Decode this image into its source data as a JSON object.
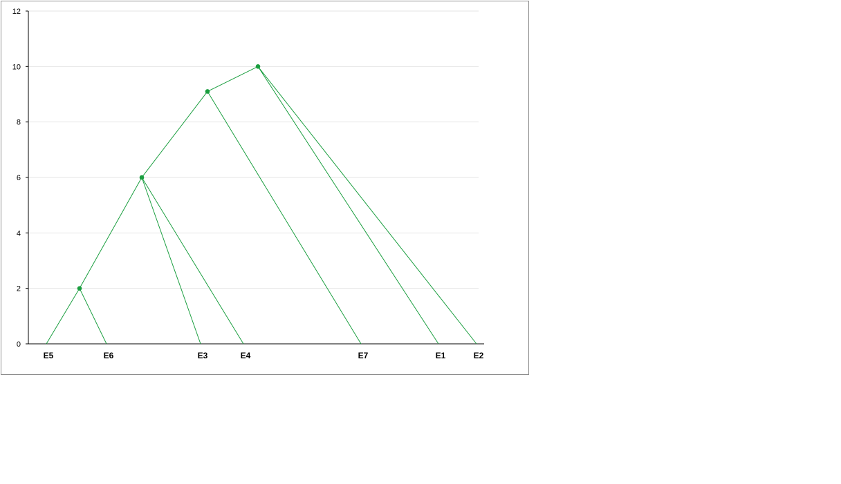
{
  "chart_data": {
    "type": "scatter",
    "title": "",
    "xlabel": "",
    "ylabel": "",
    "ylim": [
      0,
      12
    ],
    "y_ticks": [
      0,
      2,
      4,
      6,
      8,
      10,
      12
    ],
    "grid": "horizontal",
    "legend": "none",
    "line_color": "#1a9e3f",
    "marker_color": "#1a9e3f",
    "grid_color": "#e6e6e6",
    "leaves": [
      {
        "label": "E5",
        "pos": 1
      },
      {
        "label": "E6",
        "pos": 2
      },
      {
        "label": "E3",
        "pos": 3
      },
      {
        "label": "E4",
        "pos": 4
      },
      {
        "label": "E7",
        "pos": 5
      },
      {
        "label": "E1",
        "pos": 6
      },
      {
        "label": "E2",
        "pos": 7
      }
    ],
    "merges": [
      {
        "height": 2,
        "children": [
          "E5",
          "E6"
        ]
      },
      {
        "height": 6,
        "children": [
          "E5-E6",
          "E3",
          "E4"
        ]
      },
      {
        "height": 9.1,
        "children": [
          "E5-E6-E3-E4",
          "E7"
        ]
      },
      {
        "height": 10,
        "children": [
          "E5-E6-E3-E4-E7",
          "E1",
          "E2"
        ]
      }
    ]
  }
}
